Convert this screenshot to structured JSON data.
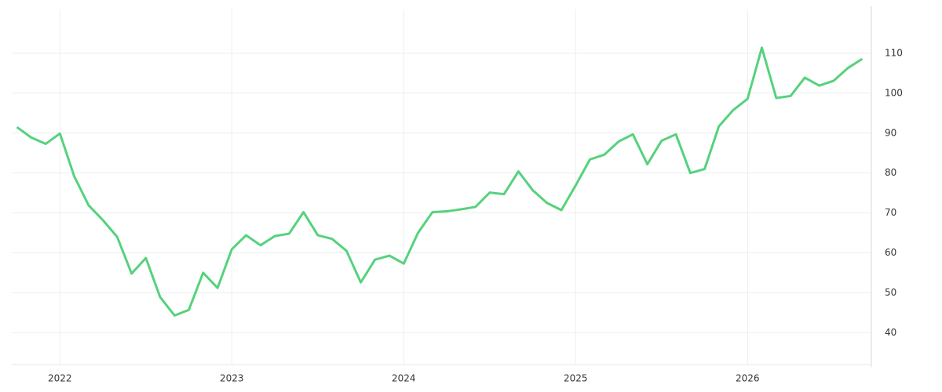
{
  "chart_data": {
    "type": "line",
    "x": [
      2021.75,
      2021.833,
      2021.917,
      2022,
      2022.083,
      2022.167,
      2022.25,
      2022.333,
      2022.417,
      2022.5,
      2022.583,
      2022.667,
      2022.75,
      2022.833,
      2022.917,
      2023,
      2023.083,
      2023.167,
      2023.25,
      2023.333,
      2023.417,
      2023.5,
      2023.583,
      2023.667,
      2023.75,
      2023.833,
      2023.917,
      2024,
      2024.083,
      2024.167,
      2024.25,
      2024.333,
      2024.417,
      2024.5,
      2024.583,
      2024.667,
      2024.75,
      2024.833,
      2024.917,
      2025,
      2025.083,
      2025.167,
      2025.25,
      2025.333,
      2025.417,
      2025.5,
      2025.583,
      2025.667,
      2025.75,
      2025.833,
      2025.917,
      2026,
      2026.083,
      2026.167,
      2026.25,
      2026.333,
      2026.417,
      2026.5,
      2026.583,
      2026.667
    ],
    "series": [
      {
        "color": "#55d27d",
        "values": [
          91.5,
          88.9,
          87.3,
          89.9,
          79.2,
          71.9,
          68.2,
          64.0,
          54.8,
          58.7,
          48.9,
          44.3,
          45.7,
          55.0,
          51.2,
          60.9,
          64.4,
          61.9,
          64.2,
          64.8,
          70.2,
          64.4,
          63.5,
          60.5,
          52.6,
          58.3,
          59.3,
          57.3,
          65.0,
          70.2,
          70.4,
          70.9,
          71.5,
          75.1,
          74.7,
          80.4,
          75.7,
          72.5,
          70.7,
          76.9,
          83.4,
          84.6,
          87.9,
          89.7,
          82.2,
          88.1,
          89.7,
          80.0,
          81.0,
          91.7,
          95.8,
          98.6,
          111.4,
          98.8,
          99.3,
          103.9,
          101.9,
          103.1,
          106.3,
          108.6
        ]
      }
    ],
    "xlim": [
      2021.72,
      2026.72
    ],
    "xticks": [
      2022,
      2023,
      2024,
      2025,
      2026
    ],
    "ylim": [
      32,
      121
    ],
    "yticks": [
      40,
      50,
      60,
      70,
      80,
      90,
      100,
      110
    ],
    "grid": true
  }
}
